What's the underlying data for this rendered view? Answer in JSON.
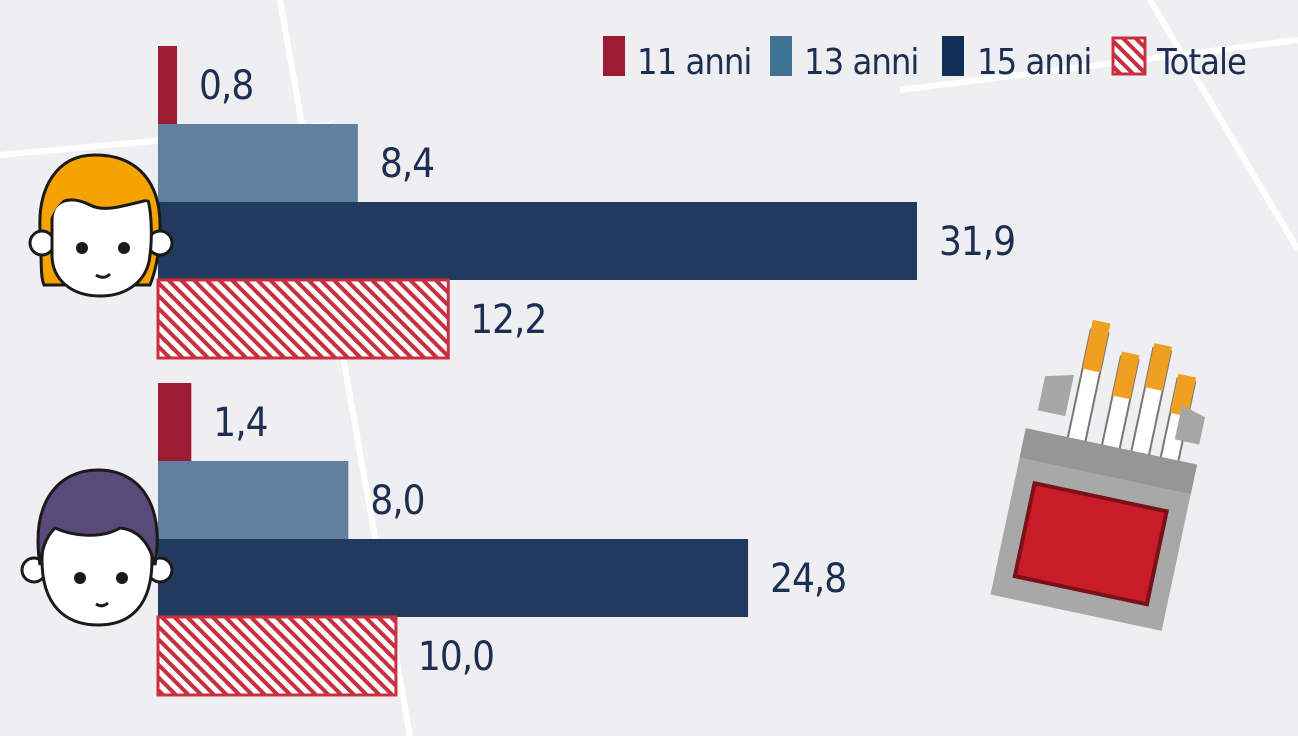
{
  "chart_data": {
    "type": "bar",
    "orientation": "horizontal",
    "categories": [
      "",
      ""
    ],
    "series": [
      {
        "name": "11 anni",
        "values": [
          0.8,
          1.4
        ],
        "labels": [
          "0,8",
          "1,4"
        ]
      },
      {
        "name": "13 anni",
        "values": [
          8.4,
          8.0
        ],
        "labels": [
          "8,4",
          "8,0"
        ]
      },
      {
        "name": "15 anni",
        "values": [
          31.9,
          24.8
        ],
        "labels": [
          "31,9",
          "24,8"
        ]
      },
      {
        "name": "Totale",
        "values": [
          12.2,
          10.0
        ],
        "labels": [
          "12,2",
          "10,0"
        ]
      }
    ],
    "legend_position": "top-right",
    "grid": false,
    "xlim": [
      0,
      32
    ]
  },
  "colors": {
    "s11": "#9e1b35",
    "s13": "#61809f",
    "s15": "#213a5e",
    "totale": "#c8303f",
    "background": "#efeff1"
  },
  "icons": [
    "girl-face-icon",
    "boy-face-icon",
    "cigarette-pack-icon"
  ]
}
